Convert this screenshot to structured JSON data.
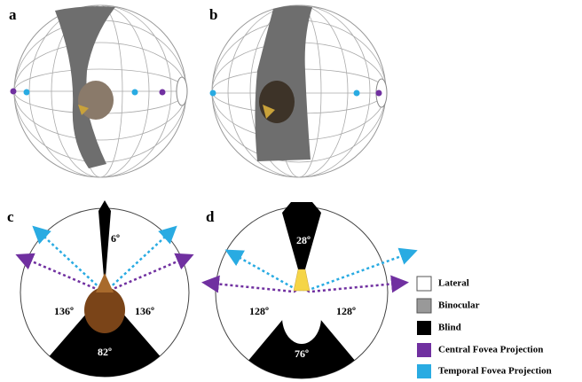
{
  "panels": [
    {
      "label": "a"
    },
    {
      "label": "b"
    },
    {
      "label": "c",
      "angles": [
        "6º",
        "136º",
        "136º",
        "82º"
      ]
    },
    {
      "label": "d",
      "angles": [
        "28º",
        "128º",
        "128º",
        "76º"
      ]
    }
  ],
  "legend": [
    {
      "label": "Lateral"
    },
    {
      "label": "Binocular"
    },
    {
      "label": "Blind"
    },
    {
      "label": "Central Fovea Projection"
    },
    {
      "label": "Temporal Fovea Projection"
    }
  ]
}
